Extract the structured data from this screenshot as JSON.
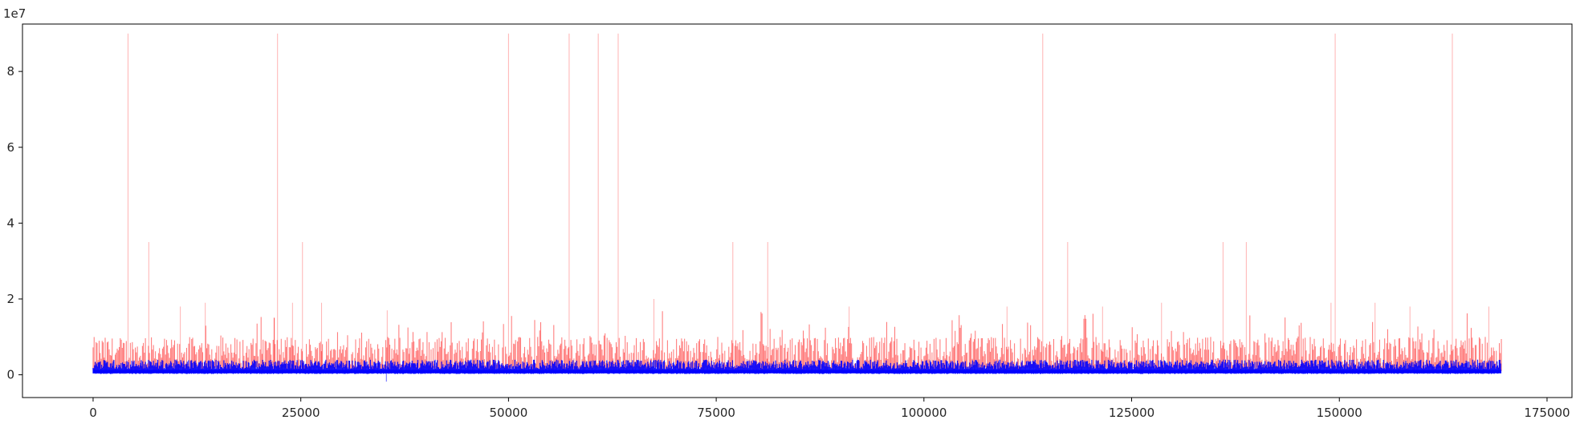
{
  "chart_data": {
    "type": "line",
    "title": "",
    "xlabel": "",
    "ylabel": "",
    "y_offset_label": "1e7",
    "xlim": [
      -8500,
      178000
    ],
    "ylim": [
      -0.6,
      9.25
    ],
    "y_scale_note": "values shown in units of 1e7",
    "x_ticks": [
      0,
      25000,
      50000,
      75000,
      100000,
      125000,
      150000,
      175000
    ],
    "x_tick_labels": [
      "0",
      "25000",
      "50000",
      "75000",
      "100000",
      "125000",
      "150000",
      "175000"
    ],
    "y_ticks": [
      0,
      2,
      4,
      6,
      8
    ],
    "y_tick_labels": [
      "0",
      "2",
      "4",
      "6",
      "8"
    ],
    "grid": false,
    "legend": "none",
    "x_range": [
      0,
      169500
    ],
    "series": [
      {
        "color": "#ff0000",
        "style": "thin translucent line",
        "baseline": 0.2,
        "band_max": 0.8,
        "spike_points": [
          [
            4200,
            9.0
          ],
          [
            6700,
            3.5
          ],
          [
            10500,
            1.8
          ],
          [
            13500,
            1.9
          ],
          [
            21800,
            1.5
          ],
          [
            22200,
            9.0
          ],
          [
            24000,
            1.9
          ],
          [
            25200,
            3.5
          ],
          [
            27500,
            1.9
          ],
          [
            35400,
            1.7
          ],
          [
            50000,
            9.0
          ],
          [
            57300,
            9.0
          ],
          [
            60800,
            9.0
          ],
          [
            63200,
            9.0
          ],
          [
            67500,
            2.0
          ],
          [
            77000,
            3.5
          ],
          [
            81200,
            3.5
          ],
          [
            91000,
            1.8
          ],
          [
            110000,
            1.8
          ],
          [
            114300,
            9.0
          ],
          [
            117300,
            3.5
          ],
          [
            121500,
            1.8
          ],
          [
            128600,
            1.9
          ],
          [
            136000,
            3.5
          ],
          [
            138800,
            3.5
          ],
          [
            149000,
            1.9
          ],
          [
            149500,
            9.0
          ],
          [
            154300,
            1.9
          ],
          [
            158500,
            1.8
          ],
          [
            163600,
            9.0
          ],
          [
            168000,
            1.8
          ]
        ]
      },
      {
        "color": "#0000ff",
        "style": "dense noisy band",
        "baseline": 0.1,
        "band_min": 0.02,
        "band_max": 0.4,
        "dip_points": [
          [
            35300,
            -0.18
          ]
        ]
      }
    ]
  }
}
